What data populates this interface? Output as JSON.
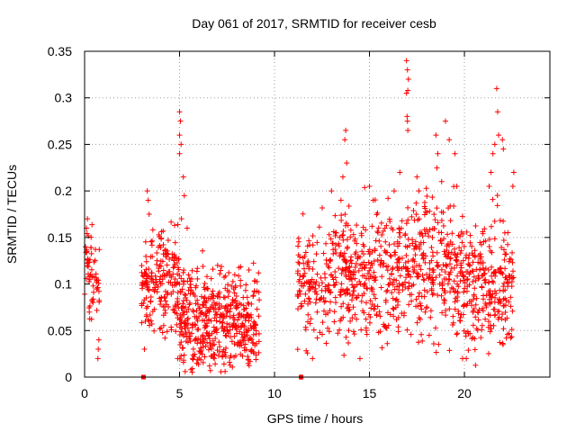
{
  "chart_data": {
    "type": "scatter",
    "title": "Day 061 of 2017, SRMTID for receiver cesb",
    "xlabel": "GPS time / hours",
    "ylabel": "SRMTID / TECUs",
    "xlim": [
      0,
      24.5
    ],
    "ylim": [
      0,
      0.35
    ],
    "x_ticks": [
      0,
      5,
      10,
      15,
      20
    ],
    "x_tick_labels": [
      "0",
      "5",
      "10",
      "15",
      "20"
    ],
    "y_ticks": [
      0,
      0.05,
      0.1,
      0.15,
      0.2,
      0.25,
      0.3,
      0.35
    ],
    "y_tick_labels": [
      "0",
      "0.05",
      "0.1",
      "0.15",
      "0.2",
      "0.25",
      "0.3",
      "0.35"
    ],
    "grid": true,
    "marker": "+",
    "marker_color": "#ff0000",
    "legend": "none",
    "zero_markers": {
      "marker": "square",
      "x": [
        3.1,
        11.4
      ],
      "y": [
        0,
        0
      ]
    },
    "series": [
      {
        "name": "SRMTID",
        "clusters": [
          {
            "x_range": [
              0.0,
              0.8
            ],
            "y_center": 0.11,
            "y_spread": 0.03,
            "count": 60
          },
          {
            "x_range": [
              3.0,
              5.0
            ],
            "y_center": 0.1,
            "y_spread": 0.04,
            "count": 200
          },
          {
            "x_range": [
              5.0,
              9.2
            ],
            "y_center": 0.06,
            "y_spread": 0.035,
            "count": 480
          },
          {
            "x_range": [
              11.2,
              13.0
            ],
            "y_center": 0.1,
            "y_spread": 0.04,
            "count": 140
          },
          {
            "x_range": [
              13.0,
              16.5
            ],
            "y_center": 0.11,
            "y_spread": 0.045,
            "count": 320
          },
          {
            "x_range": [
              16.5,
              19.5
            ],
            "y_center": 0.12,
            "y_spread": 0.05,
            "count": 280
          },
          {
            "x_range": [
              19.5,
              22.6
            ],
            "y_center": 0.1,
            "y_spread": 0.045,
            "count": 300
          }
        ],
        "points": [
          [
            0.05,
            0.14
          ],
          [
            0.1,
            0.16
          ],
          [
            0.15,
            0.17
          ],
          [
            0.12,
            0.135
          ],
          [
            0.7,
            0.02
          ],
          [
            0.75,
            0.04
          ],
          [
            0.72,
            0.03
          ],
          [
            3.3,
            0.2
          ],
          [
            3.35,
            0.19
          ],
          [
            3.4,
            0.175
          ],
          [
            3.15,
            0.03
          ],
          [
            3.2,
            0.06
          ],
          [
            5.0,
            0.285
          ],
          [
            5.05,
            0.275
          ],
          [
            5.0,
            0.26
          ],
          [
            5.08,
            0.25
          ],
          [
            5.0,
            0.24
          ],
          [
            5.2,
            0.215
          ],
          [
            5.25,
            0.195
          ],
          [
            5.1,
            0.17
          ],
          [
            5.4,
            0.16
          ],
          [
            4.9,
            0.02
          ],
          [
            5.6,
            0.008
          ],
          [
            13.0,
            0.2
          ],
          [
            13.5,
            0.19
          ],
          [
            13.7,
            0.255
          ],
          [
            13.75,
            0.265
          ],
          [
            13.8,
            0.23
          ],
          [
            13.6,
            0.215
          ],
          [
            15.0,
            0.205
          ],
          [
            15.2,
            0.19
          ],
          [
            16.3,
            0.2
          ],
          [
            16.6,
            0.22
          ],
          [
            16.95,
            0.34
          ],
          [
            17.0,
            0.33
          ],
          [
            17.05,
            0.32
          ],
          [
            16.95,
            0.305
          ],
          [
            17.02,
            0.308
          ],
          [
            16.98,
            0.28
          ],
          [
            17.0,
            0.275
          ],
          [
            17.02,
            0.265
          ],
          [
            17.5,
            0.215
          ],
          [
            17.6,
            0.2
          ],
          [
            18.5,
            0.26
          ],
          [
            18.6,
            0.24
          ],
          [
            18.8,
            0.21
          ],
          [
            19.0,
            0.275
          ],
          [
            19.2,
            0.255
          ],
          [
            19.5,
            0.24
          ],
          [
            19.6,
            0.205
          ],
          [
            21.3,
            0.205
          ],
          [
            21.4,
            0.22
          ],
          [
            21.5,
            0.24
          ],
          [
            21.6,
            0.25
          ],
          [
            21.7,
            0.31
          ],
          [
            21.75,
            0.285
          ],
          [
            21.8,
            0.26
          ],
          [
            22.0,
            0.255
          ],
          [
            22.05,
            0.245
          ],
          [
            22.6,
            0.22
          ],
          [
            22.55,
            0.205
          ],
          [
            11.4,
            0.0
          ],
          [
            12.0,
            0.02
          ],
          [
            14.5,
            0.02
          ],
          [
            19.9,
            0.02
          ],
          [
            20.1,
            0.02
          ]
        ]
      }
    ]
  }
}
